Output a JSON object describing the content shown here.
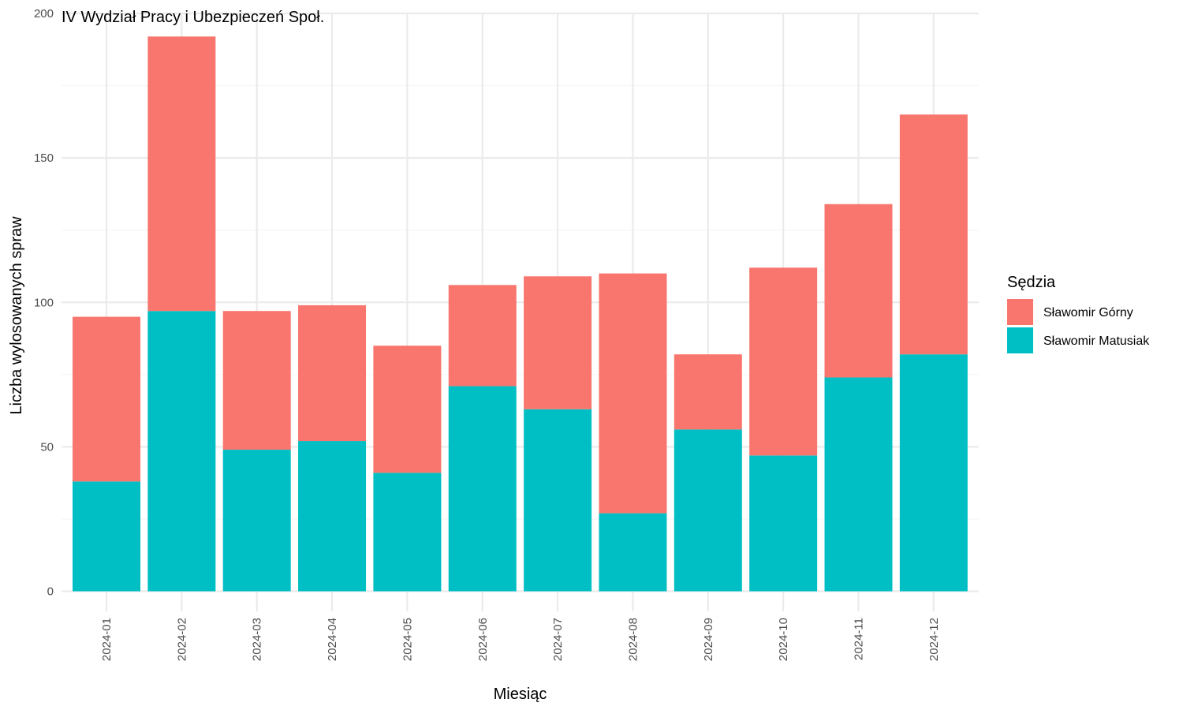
{
  "chart_data": {
    "type": "bar",
    "stacked": true,
    "title": "IV Wydział Pracy i Ubezpieczeń Społ.",
    "xlabel": "Miesiąc",
    "ylabel": "Liczba wylosowanych spraw",
    "categories": [
      "2024-01",
      "2024-02",
      "2024-03",
      "2024-04",
      "2024-05",
      "2024-06",
      "2024-07",
      "2024-08",
      "2024-09",
      "2024-10",
      "2024-11",
      "2024-12"
    ],
    "series": [
      {
        "name": "Sławomir Matusiak",
        "color": "#00BFC4",
        "values": [
          38,
          97,
          49,
          52,
          41,
          71,
          63,
          27,
          56,
          47,
          74,
          82
        ]
      },
      {
        "name": "Sławomir Górny",
        "color": "#F8766D",
        "values": [
          57,
          95,
          48,
          47,
          44,
          35,
          46,
          83,
          26,
          65,
          60,
          83
        ]
      }
    ],
    "ylim": [
      0,
      200
    ],
    "yticks": [
      0,
      50,
      100,
      150,
      200
    ],
    "grid": true,
    "legend": {
      "title": "Sędzia",
      "position": "right",
      "entries": [
        {
          "label": "Sławomir Górny",
          "color": "#F8766D"
        },
        {
          "label": "Sławomir Matusiak",
          "color": "#00BFC4"
        }
      ]
    }
  }
}
